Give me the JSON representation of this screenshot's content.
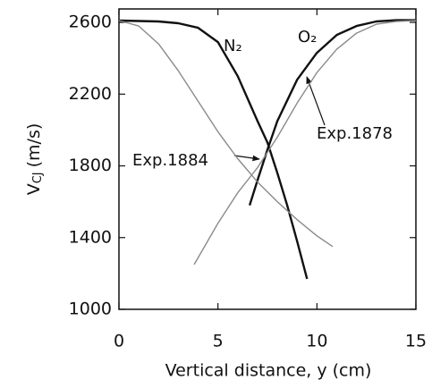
{
  "chart_data": {
    "type": "line",
    "x_label": "Vertical distance, y (cm)",
    "y_label": {
      "main": "V",
      "sub": "CJ",
      "unit": "(m/s)"
    },
    "xlim": [
      0,
      15
    ],
    "xticks": [
      0,
      5,
      10,
      15
    ],
    "ylim": [
      1000,
      2675
    ],
    "yticks": [
      1000,
      1400,
      1800,
      2200,
      2600
    ],
    "series": [
      {
        "name": "N₂",
        "color": "#111111",
        "x": [
          0,
          2,
          3,
          4,
          5,
          6,
          7,
          7.5,
          8,
          8.5,
          9,
          9.5
        ],
        "values": [
          2610,
          2605,
          2595,
          2570,
          2490,
          2300,
          2050,
          1930,
          1760,
          1580,
          1380,
          1170
        ]
      },
      {
        "name": "O₂",
        "color": "#111111",
        "x": [
          6.6,
          7,
          7.5,
          8,
          9,
          10,
          11,
          12,
          13,
          14,
          15
        ],
        "values": [
          1580,
          1720,
          1890,
          2050,
          2280,
          2430,
          2530,
          2580,
          2605,
          2612,
          2612
        ]
      },
      {
        "name": "Exp.1878",
        "color": "#8a8a8a",
        "x": [
          3.8,
          5,
          6,
          7,
          8,
          9,
          10,
          11,
          12,
          13,
          14,
          15
        ],
        "values": [
          1250,
          1480,
          1650,
          1790,
          1960,
          2150,
          2320,
          2450,
          2540,
          2590,
          2605,
          2610
        ]
      },
      {
        "name": "Exp.1884",
        "color": "#8a8a8a",
        "x": [
          0,
          1,
          2,
          3,
          4,
          5,
          6,
          7,
          8,
          9,
          10,
          10.8
        ],
        "values": [
          2610,
          2580,
          2480,
          2330,
          2160,
          1990,
          1840,
          1710,
          1600,
          1500,
          1410,
          1350
        ]
      }
    ]
  }
}
